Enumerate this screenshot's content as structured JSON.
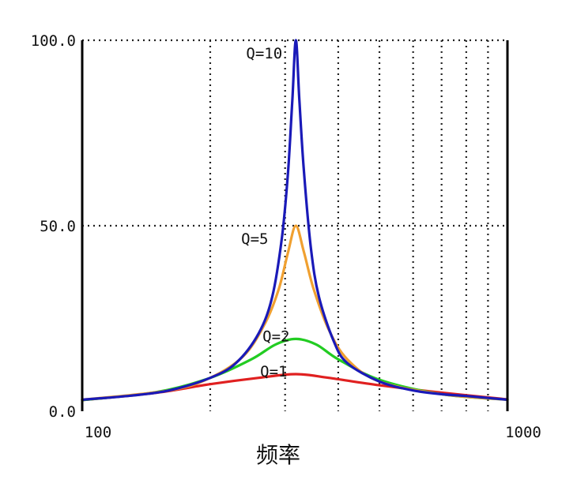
{
  "chart_data": {
    "type": "line",
    "xlabel": "频率",
    "ylabel": "",
    "x_scale": "log",
    "xlim": [
      100,
      1000
    ],
    "ylim": [
      0,
      100
    ],
    "grid": "dotted",
    "x_tick_labels": [
      {
        "value": 100,
        "label": "100"
      },
      {
        "value": 1000,
        "label": "1000"
      }
    ],
    "y_tick_labels": [
      {
        "value": 0,
        "label": "0.0"
      },
      {
        "value": 50,
        "label": "50.0"
      },
      {
        "value": 100,
        "label": "100.0"
      }
    ],
    "x_gridlines": [
      200,
      300,
      400,
      500,
      600,
      700,
      800,
      900
    ],
    "y_gridlines": [
      50,
      100
    ],
    "center_frequency": 318,
    "series": [
      {
        "name": "Q=10",
        "color": "#1a1ab8",
        "x": [
          100,
          130,
          160,
          200,
          230,
          260,
          280,
          295,
          305,
          312,
          318,
          324,
          332,
          345,
          360,
          390,
          420,
          500,
          600,
          700,
          800,
          1000
        ],
        "y": [
          3.1,
          4.2,
          5.6,
          9,
          13,
          21,
          31,
          47,
          65,
          84,
          100,
          84,
          65,
          44,
          31,
          19,
          13,
          8,
          5.6,
          4.6,
          4.1,
          3.1
        ]
      },
      {
        "name": "Q=5",
        "color": "#f0a030",
        "x": [
          100,
          160,
          200,
          240,
          270,
          290,
          305,
          318,
          332,
          350,
          380,
          420,
          500,
          700,
          1000
        ],
        "y": [
          3.1,
          5.6,
          9,
          15,
          24,
          33,
          43,
          50,
          43,
          33,
          22,
          14,
          8,
          4.6,
          3.1
        ]
      },
      {
        "name": "Q=2",
        "color": "#22cc22",
        "x": [
          100,
          150,
          200,
          250,
          285,
          318,
          355,
          400,
          500,
          700,
          1000
        ],
        "y": [
          3,
          5.2,
          9,
          14,
          18,
          19.5,
          18,
          14,
          8.5,
          4.6,
          3.1
        ]
      },
      {
        "name": "Q=1",
        "color": "#e02020",
        "x": [
          100,
          150,
          200,
          260,
          318,
          380,
          500,
          700,
          1000
        ],
        "y": [
          3,
          5,
          7.3,
          9,
          10,
          9,
          7,
          5,
          3.2
        ]
      }
    ],
    "annotations": [
      {
        "text": "Q=10",
        "series": "Q=10"
      },
      {
        "text": "Q=5",
        "series": "Q=5"
      },
      {
        "text": "Q=2",
        "series": "Q=2"
      },
      {
        "text": "Q=1",
        "series": "Q=1"
      }
    ]
  }
}
